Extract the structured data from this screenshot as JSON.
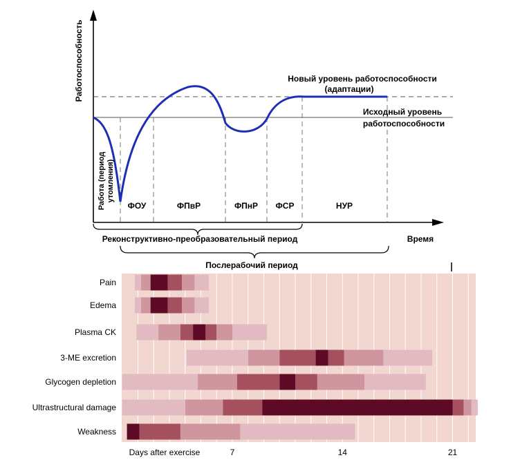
{
  "top_diagram": {
    "y_axis_label": "Работоспособность",
    "x_axis_label": "Время",
    "new_level_label_line1": "Новый уровень работоспособности",
    "new_level_label_line2": "(адаптации)",
    "initial_level_label_line1": "Исходный уровень",
    "initial_level_label_line2": "работоспособности",
    "work_phase_label_line1": "Работа (период",
    "work_phase_label_line2": "утомления)",
    "phases": [
      "ФОУ",
      "ФПвР",
      "ФПнР",
      "ФСР",
      "НУР"
    ],
    "reconstructive_period_label": "Реконструктивно-преобразовательный период",
    "post_work_period_label": "Послерабочий период",
    "colors": {
      "curve": "#1f2fb3",
      "axis": "#000000",
      "guide": "#555555"
    }
  },
  "bottom_chart": {
    "x_axis_title": "Days after exercise",
    "x_ticks": [
      "7",
      "14",
      "21"
    ],
    "rows": [
      "Pain",
      "Edema",
      "Plasma CK",
      "3-ME excretion",
      "Glycogen depletion",
      "Ultrastructural damage",
      "Weakness"
    ],
    "colors": {
      "background": "#f2d6d0",
      "grid": "#ffffff",
      "level1": "#e2bac2",
      "level2": "#cf96a0",
      "level3": "#a4505f",
      "level4": "#5c0a26"
    }
  },
  "chart_data": {
    "type": "heatmap",
    "title": "",
    "xlabel": "Days after exercise",
    "ylabel": "",
    "x_tick_labels": [
      "7",
      "14",
      "21"
    ],
    "xlim_days": [
      0,
      22.5
    ],
    "categories": [
      "Pain",
      "Edema",
      "Plasma CK",
      "3-ME excretion",
      "Glycogen depletion",
      "Ultrastructural damage",
      "Weakness"
    ],
    "intensity_scale": "1 = light, 4 = darkest",
    "series": [
      {
        "segments": [
          [
            0.8,
            1.2,
            1
          ],
          [
            1.2,
            1.8,
            2
          ],
          [
            1.8,
            2.9,
            4
          ],
          [
            2.9,
            3.8,
            3
          ],
          [
            3.8,
            4.6,
            2
          ],
          [
            4.6,
            5.5,
            1
          ]
        ]
      },
      {
        "segments": [
          [
            0.8,
            1.2,
            1
          ],
          [
            1.2,
            1.8,
            2
          ],
          [
            1.8,
            2.9,
            4
          ],
          [
            2.9,
            3.8,
            3
          ],
          [
            3.8,
            4.6,
            2
          ],
          [
            4.6,
            5.5,
            1
          ]
        ]
      },
      {
        "segments": [
          [
            0.9,
            2.3,
            1
          ],
          [
            2.3,
            3.7,
            2
          ],
          [
            3.7,
            4.5,
            3
          ],
          [
            4.5,
            5.3,
            4
          ],
          [
            5.3,
            6.0,
            3
          ],
          [
            6.0,
            7.0,
            2
          ],
          [
            7.0,
            9.2,
            1
          ]
        ]
      },
      {
        "segments": [
          [
            4.1,
            8.0,
            1
          ],
          [
            8.0,
            10.0,
            2
          ],
          [
            10.0,
            12.3,
            3
          ],
          [
            12.3,
            13.1,
            4
          ],
          [
            13.1,
            14.1,
            3
          ],
          [
            14.1,
            16.6,
            2
          ],
          [
            16.6,
            19.7,
            1
          ]
        ]
      },
      {
        "segments": [
          [
            0.0,
            4.8,
            1
          ],
          [
            4.8,
            7.3,
            2
          ],
          [
            7.3,
            10.0,
            3
          ],
          [
            10.0,
            11.0,
            4
          ],
          [
            11.0,
            12.4,
            3
          ],
          [
            12.4,
            15.4,
            2
          ],
          [
            15.4,
            19.3,
            1
          ]
        ]
      },
      {
        "segments": [
          [
            0.0,
            4.0,
            1
          ],
          [
            4.0,
            6.4,
            2
          ],
          [
            6.4,
            8.9,
            3
          ],
          [
            8.9,
            21.0,
            4
          ],
          [
            21.0,
            21.7,
            3
          ],
          [
            21.7,
            22.2,
            2
          ],
          [
            22.2,
            22.6,
            1
          ]
        ]
      },
      {
        "segments": [
          [
            0.3,
            1.1,
            4
          ],
          [
            1.1,
            3.7,
            3
          ],
          [
            3.7,
            7.5,
            2
          ],
          [
            7.5,
            14.8,
            1
          ]
        ]
      }
    ]
  }
}
